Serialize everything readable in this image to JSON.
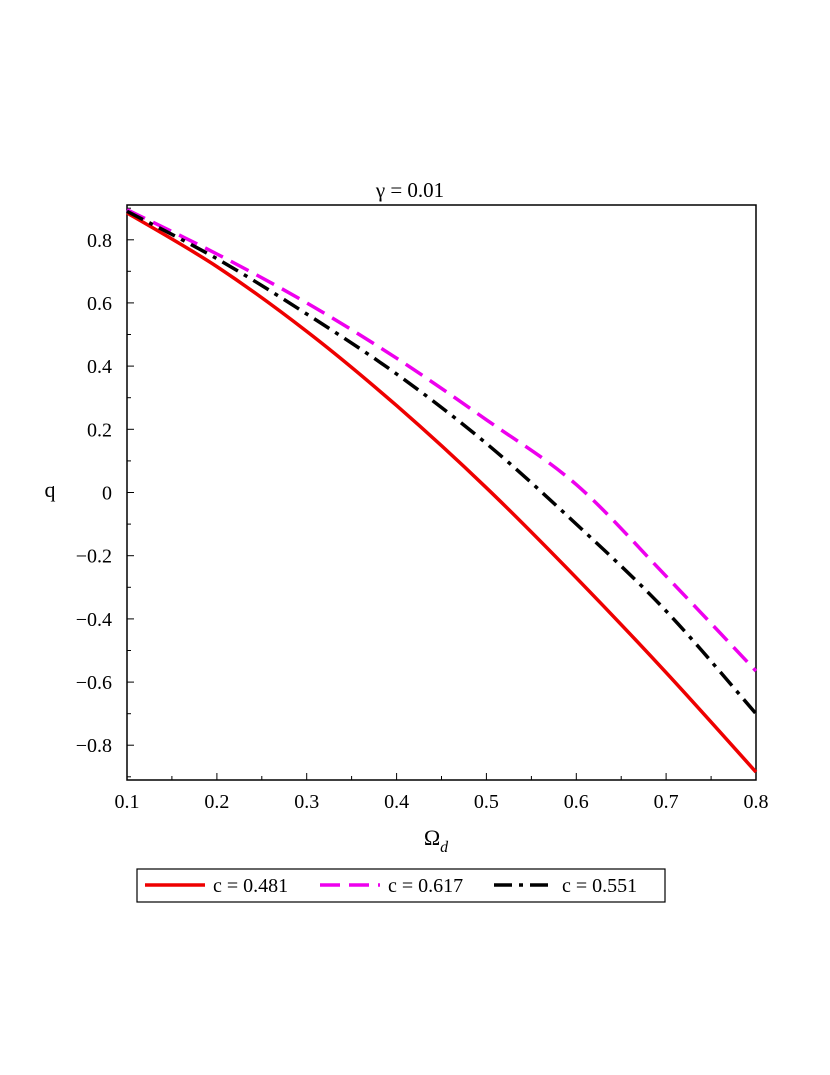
{
  "chart_data": {
    "type": "line",
    "title": "γ = 0.01",
    "xlabel": "Ω",
    "xlabel_sub": "d",
    "ylabel": "q",
    "xlim": [
      0.1,
      0.8
    ],
    "ylim": [
      -0.91,
      0.91
    ],
    "x_ticks": [
      0.1,
      0.2,
      0.3,
      0.4,
      0.5,
      0.6,
      0.7,
      0.8
    ],
    "x_tick_labels": [
      "0.1",
      "0.2",
      "0.3",
      "0.4",
      "0.5",
      "0.6",
      "0.7",
      "0.8"
    ],
    "y_ticks": [
      0.8,
      0.6,
      0.4,
      0.2,
      0,
      -0.2,
      -0.4,
      -0.6,
      -0.8
    ],
    "y_tick_labels": [
      "0.8",
      "0.6",
      "0.4",
      "0.2",
      "0",
      "−0.2",
      "−0.4",
      "−0.6",
      "−0.8"
    ],
    "grid": false,
    "legend_position": "bottom",
    "x": [
      0.1,
      0.2,
      0.3,
      0.4,
      0.5,
      0.6,
      0.7,
      0.8
    ],
    "series": [
      {
        "name": "c = 0.481",
        "color": "#ee0000",
        "style": "solid",
        "values": [
          0.885,
          0.715,
          0.51,
          0.275,
          0.015,
          -0.27,
          -0.57,
          -0.885
        ]
      },
      {
        "name": "c = 0.617",
        "color": "#ee00ee",
        "style": "dash",
        "values": [
          0.895,
          0.755,
          0.6,
          0.425,
          0.23,
          0.025,
          -0.265,
          -0.565
        ]
      },
      {
        "name": "c = 0.551",
        "color": "#000000",
        "style": "dashdot",
        "values": [
          0.89,
          0.74,
          0.565,
          0.375,
          0.155,
          -0.1,
          -0.375,
          -0.7
        ]
      }
    ]
  }
}
